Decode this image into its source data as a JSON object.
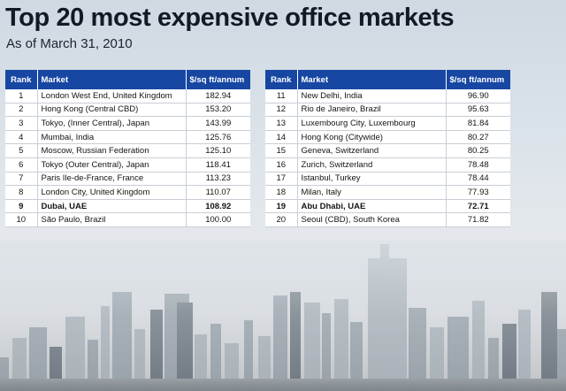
{
  "title": "Top 20 most expensive office markets",
  "subtitle": "As of March 31, 2010",
  "headers": {
    "rank": "Rank",
    "market": "Market",
    "price": "$/sq ft/annum"
  },
  "left_rows": [
    {
      "rank": "1",
      "market": "London West End, United Kingdom",
      "price": "182.94",
      "bold": false
    },
    {
      "rank": "2",
      "market": "Hong Kong (Central CBD)",
      "price": "153.20",
      "bold": false
    },
    {
      "rank": "3",
      "market": "Tokyo, (Inner Central), Japan",
      "price": "143.99",
      "bold": false
    },
    {
      "rank": "4",
      "market": "Mumbai, India",
      "price": "125.76",
      "bold": false
    },
    {
      "rank": "5",
      "market": "Moscow, Russian Federation",
      "price": "125.10",
      "bold": false
    },
    {
      "rank": "6",
      "market": "Tokyo (Outer Central), Japan",
      "price": "118.41",
      "bold": false
    },
    {
      "rank": "7",
      "market": "Paris Ile-de-France, France",
      "price": "113.23",
      "bold": false
    },
    {
      "rank": "8",
      "market": "London City, United Kingdom",
      "price": "110.07",
      "bold": false
    },
    {
      "rank": "9",
      "market": "Dubai, UAE",
      "price": "108.92",
      "bold": true
    },
    {
      "rank": "10",
      "market": "São Paulo, Brazil",
      "price": "100.00",
      "bold": false
    }
  ],
  "right_rows": [
    {
      "rank": "11",
      "market": "New Delhi, India",
      "price": "96.90",
      "bold": false
    },
    {
      "rank": "12",
      "market": "Rio de Janeiro, Brazil",
      "price": "95.63",
      "bold": false
    },
    {
      "rank": "13",
      "market": "Luxembourg City, Luxembourg",
      "price": "81.84",
      "bold": false
    },
    {
      "rank": "14",
      "market": "Hong Kong (Citywide)",
      "price": "80.27",
      "bold": false
    },
    {
      "rank": "15",
      "market": "Geneva, Switzerland",
      "price": "80.25",
      "bold": false
    },
    {
      "rank": "16",
      "market": "Zurich, Switzerland",
      "price": "78.48",
      "bold": false
    },
    {
      "rank": "17",
      "market": "Istanbul, Turkey",
      "price": "78.44",
      "bold": false
    },
    {
      "rank": "18",
      "market": "Milan, Italy",
      "price": "77.93",
      "bold": false
    },
    {
      "rank": "19",
      "market": "Abu Dhabi, UAE",
      "price": "72.71",
      "bold": true
    },
    {
      "rank": "20",
      "market": "Seoul (CBD), South Korea",
      "price": "71.82",
      "bold": false
    }
  ],
  "colors": {
    "header_bg": "#1747a3",
    "header_text": "#ffffff",
    "title": "#121a27"
  },
  "background_image": "hazy-city-skyline"
}
